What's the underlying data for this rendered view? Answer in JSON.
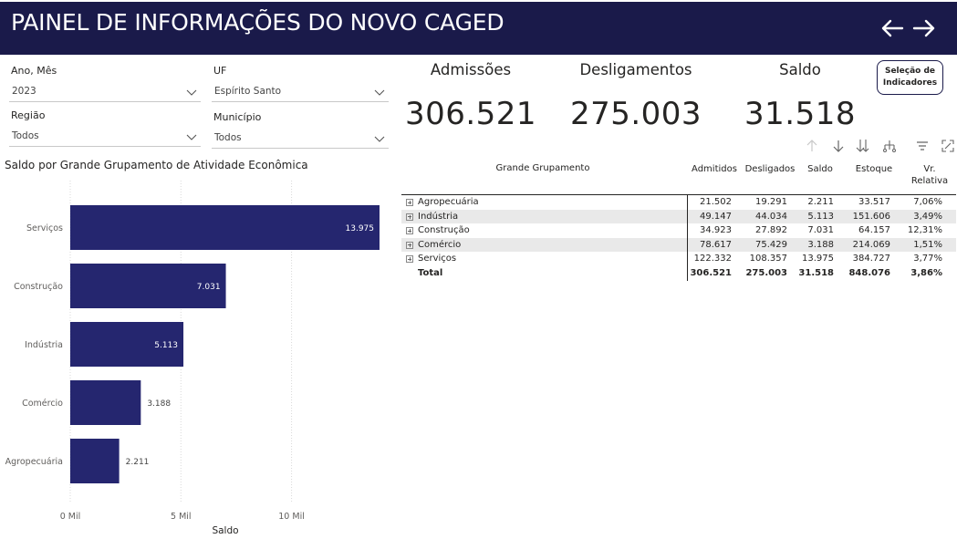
{
  "header": {
    "title": "PAINEL DE INFORMAÇÕES DO NOVO CAGED",
    "back_icon": "arrow-left-icon",
    "forward_icon": "arrow-right-icon"
  },
  "filters": {
    "ano_mes": {
      "label": "Ano, Mês",
      "value": "2023"
    },
    "uf": {
      "label": "UF",
      "value": "Espírito Santo"
    },
    "regiao": {
      "label": "Região",
      "value": "Todos"
    },
    "municipio": {
      "label": "Município",
      "value": "Todos"
    }
  },
  "kpis": {
    "admissoes": {
      "label": "Admissões",
      "value": "306.521"
    },
    "desligamentos": {
      "label": "Desligamentos",
      "value": "275.003"
    },
    "saldo": {
      "label": "Saldo",
      "value": "31.518"
    }
  },
  "selection_button": {
    "line1": "Seleção de",
    "line2": "Indicadores"
  },
  "chart_title": "Saldo por Grande Grupamento de Atividade Econômica",
  "chart_data": {
    "type": "bar",
    "orientation": "horizontal",
    "categories": [
      "Serviços",
      "Construção",
      "Indústria",
      "Comércio",
      "Agropecuária"
    ],
    "values": [
      13975,
      7031,
      5113,
      3188,
      2211
    ],
    "value_labels": [
      "13.975",
      "7.031",
      "5.113",
      "3.188",
      "2.211"
    ],
    "xlabel": "Saldo",
    "xticks": [
      "0 Mil",
      "5 Mil",
      "10 Mil"
    ],
    "xlim": [
      0,
      14000
    ],
    "grid": true,
    "bar_color": "#25266f"
  },
  "toolbar": {
    "icons": [
      "arrow-up-icon",
      "arrow-down-icon",
      "double-arrow-down-icon",
      "expand-hierarchy-icon",
      "filter-icon",
      "focus-mode-icon"
    ]
  },
  "table": {
    "headers": {
      "grupo": "Grande Grupamento",
      "admitidos": "Admitidos",
      "desligados": "Desligados",
      "saldo": "Saldo",
      "estoque": "Estoque",
      "vr_relativa_1": "Vr.",
      "vr_relativa_2": "Relativa"
    },
    "rows": [
      {
        "name": "Agropecuária",
        "admitidos": "21.502",
        "desligados": "19.291",
        "saldo": "2.211",
        "estoque": "33.517",
        "vr": "7,06%"
      },
      {
        "name": "Indústria",
        "admitidos": "49.147",
        "desligados": "44.034",
        "saldo": "5.113",
        "estoque": "151.606",
        "vr": "3,49%"
      },
      {
        "name": "Construção",
        "admitidos": "34.923",
        "desligados": "27.892",
        "saldo": "7.031",
        "estoque": "64.157",
        "vr": "12,31%"
      },
      {
        "name": "Comércio",
        "admitidos": "78.617",
        "desligados": "75.429",
        "saldo": "3.188",
        "estoque": "214.069",
        "vr": "1,51%"
      },
      {
        "name": "Serviços",
        "admitidos": "122.332",
        "desligados": "108.357",
        "saldo": "13.975",
        "estoque": "384.727",
        "vr": "3,77%"
      }
    ],
    "total": {
      "name": "Total",
      "admitidos": "306.521",
      "desligados": "275.003",
      "saldo": "31.518",
      "estoque": "848.076",
      "vr": "3,86%"
    }
  }
}
